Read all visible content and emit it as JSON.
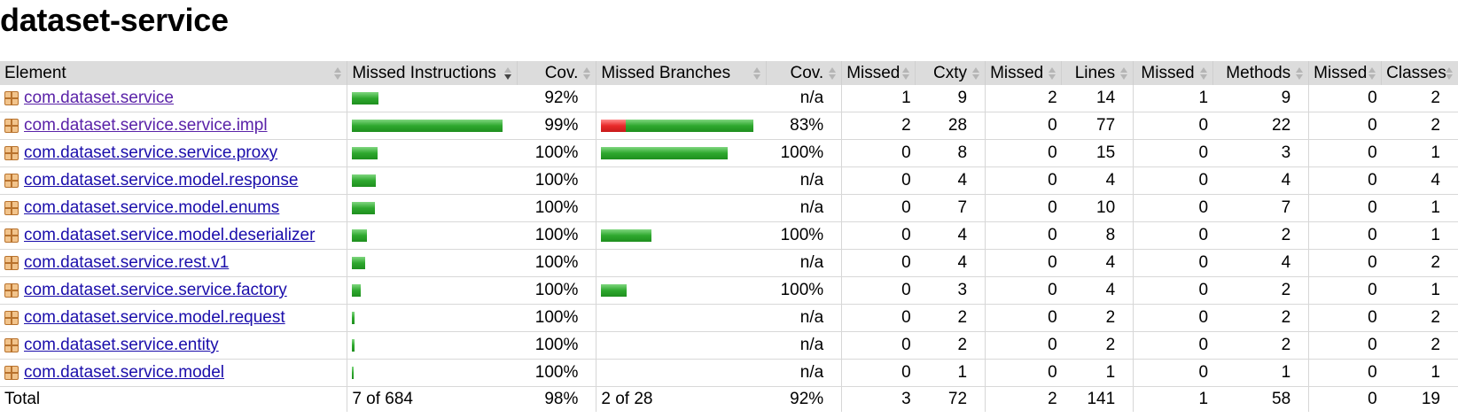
{
  "page": {
    "title": "dataset-service"
  },
  "table": {
    "headers": {
      "element": "Element",
      "missed_instructions": "Missed Instructions",
      "cov_instructions": "Cov.",
      "missed_branches": "Missed Branches",
      "cov_branches": "Cov.",
      "missed_cxty": "Missed",
      "cxty": "Cxty",
      "missed_lines": "Missed",
      "lines": "Lines",
      "missed_methods": "Missed",
      "methods": "Methods",
      "missed_classes": "Missed",
      "classes": "Classes"
    },
    "rows": [
      {
        "name": "com.dataset.service",
        "visited": true,
        "instr_bar": {
          "missed": 0,
          "covered": 30
        },
        "instr_cov": "92%",
        "branch_bar": null,
        "branch_cov": "n/a",
        "missed_cxty": "1",
        "cxty": "9",
        "missed_lines": "2",
        "lines": "14",
        "missed_methods": "1",
        "methods": "9",
        "missed_classes": "0",
        "classes": "2"
      },
      {
        "name": "com.dataset.service.service.impl",
        "visited": true,
        "instr_bar": {
          "missed": 0,
          "covered": 170
        },
        "instr_cov": "99%",
        "branch_bar": {
          "missed": 28,
          "covered": 144
        },
        "branch_cov": "83%",
        "missed_cxty": "2",
        "cxty": "28",
        "missed_lines": "0",
        "lines": "77",
        "missed_methods": "0",
        "methods": "22",
        "missed_classes": "0",
        "classes": "2"
      },
      {
        "name": "com.dataset.service.service.proxy",
        "visited": false,
        "instr_bar": {
          "missed": 0,
          "covered": 29
        },
        "instr_cov": "100%",
        "branch_bar": {
          "missed": 0,
          "covered": 143
        },
        "branch_cov": "100%",
        "missed_cxty": "0",
        "cxty": "8",
        "missed_lines": "0",
        "lines": "15",
        "missed_methods": "0",
        "methods": "3",
        "missed_classes": "0",
        "classes": "1"
      },
      {
        "name": "com.dataset.service.model.response",
        "visited": false,
        "instr_bar": {
          "missed": 0,
          "covered": 27
        },
        "instr_cov": "100%",
        "branch_bar": null,
        "branch_cov": "n/a",
        "missed_cxty": "0",
        "cxty": "4",
        "missed_lines": "0",
        "lines": "4",
        "missed_methods": "0",
        "methods": "4",
        "missed_classes": "0",
        "classes": "4"
      },
      {
        "name": "com.dataset.service.model.enums",
        "visited": false,
        "instr_bar": {
          "missed": 0,
          "covered": 26
        },
        "instr_cov": "100%",
        "branch_bar": null,
        "branch_cov": "n/a",
        "missed_cxty": "0",
        "cxty": "7",
        "missed_lines": "0",
        "lines": "10",
        "missed_methods": "0",
        "methods": "7",
        "missed_classes": "0",
        "classes": "1"
      },
      {
        "name": "com.dataset.service.model.deserializer",
        "visited": false,
        "instr_bar": {
          "missed": 0,
          "covered": 17
        },
        "instr_cov": "100%",
        "branch_bar": {
          "missed": 0,
          "covered": 57
        },
        "branch_cov": "100%",
        "missed_cxty": "0",
        "cxty": "4",
        "missed_lines": "0",
        "lines": "8",
        "missed_methods": "0",
        "methods": "2",
        "missed_classes": "0",
        "classes": "1"
      },
      {
        "name": "com.dataset.service.rest.v1",
        "visited": false,
        "instr_bar": {
          "missed": 0,
          "covered": 15
        },
        "instr_cov": "100%",
        "branch_bar": null,
        "branch_cov": "n/a",
        "missed_cxty": "0",
        "cxty": "4",
        "missed_lines": "0",
        "lines": "4",
        "missed_methods": "0",
        "methods": "4",
        "missed_classes": "0",
        "classes": "2"
      },
      {
        "name": "com.dataset.service.service.factory",
        "visited": false,
        "instr_bar": {
          "missed": 0,
          "covered": 10
        },
        "instr_cov": "100%",
        "branch_bar": {
          "missed": 0,
          "covered": 29
        },
        "branch_cov": "100%",
        "missed_cxty": "0",
        "cxty": "3",
        "missed_lines": "0",
        "lines": "4",
        "missed_methods": "0",
        "methods": "2",
        "missed_classes": "0",
        "classes": "1"
      },
      {
        "name": "com.dataset.service.model.request",
        "visited": false,
        "instr_bar": {
          "missed": 0,
          "covered": 3
        },
        "instr_cov": "100%",
        "branch_bar": null,
        "branch_cov": "n/a",
        "missed_cxty": "0",
        "cxty": "2",
        "missed_lines": "0",
        "lines": "2",
        "missed_methods": "0",
        "methods": "2",
        "missed_classes": "0",
        "classes": "2"
      },
      {
        "name": "com.dataset.service.entity",
        "visited": false,
        "instr_bar": {
          "missed": 0,
          "covered": 3
        },
        "instr_cov": "100%",
        "branch_bar": null,
        "branch_cov": "n/a",
        "missed_cxty": "0",
        "cxty": "2",
        "missed_lines": "0",
        "lines": "2",
        "missed_methods": "0",
        "methods": "2",
        "missed_classes": "0",
        "classes": "2"
      },
      {
        "name": "com.dataset.service.model",
        "visited": false,
        "instr_bar": {
          "missed": 0,
          "covered": 2
        },
        "instr_cov": "100%",
        "branch_bar": null,
        "branch_cov": "n/a",
        "missed_cxty": "0",
        "cxty": "1",
        "missed_lines": "0",
        "lines": "1",
        "missed_methods": "0",
        "methods": "1",
        "missed_classes": "0",
        "classes": "1"
      }
    ],
    "total": {
      "label": "Total",
      "instr": "7 of 684",
      "instr_cov": "98%",
      "branch": "2 of 28",
      "branch_cov": "92%",
      "missed_cxty": "3",
      "cxty": "72",
      "missed_lines": "2",
      "lines": "141",
      "missed_methods": "1",
      "methods": "58",
      "missed_classes": "0",
      "classes": "19"
    }
  },
  "colors": {
    "covered": "#2ea82e",
    "missed": "#e82a2a",
    "header_bg": "#dcdcdc",
    "link": "#1a0dab",
    "visited_link": "#5a22a8"
  },
  "icons": {
    "package": "package-icon",
    "sort": "sort-arrows-icon"
  }
}
